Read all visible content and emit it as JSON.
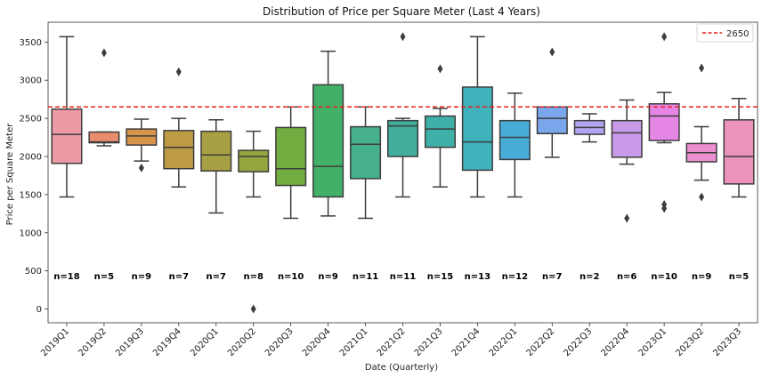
{
  "chart_data": {
    "type": "box",
    "title": "Distribution of Price per Square Meter (Last 4 Years)",
    "xlabel": "Date (Quarterly)",
    "ylabel": "Price per Square Meter",
    "ylim": [
      -180,
      3760
    ],
    "yticks": [
      0,
      500,
      1000,
      1500,
      2000,
      2500,
      3000,
      3500
    ],
    "grid": false,
    "legend": {
      "placement": "top-right",
      "entries": [
        {
          "label": "2650",
          "style": "dashed",
          "color": "#e8231f"
        }
      ]
    },
    "reference_line": {
      "value": 2650,
      "label": "2650",
      "color": "#e8231f"
    },
    "categories": [
      "2019Q1",
      "2019Q2",
      "2019Q3",
      "2019Q4",
      "2020Q1",
      "2020Q2",
      "2020Q3",
      "2020Q4",
      "2021Q1",
      "2021Q2",
      "2021Q3",
      "2021Q4",
      "2022Q1",
      "2022Q2",
      "2022Q3",
      "2022Q4",
      "2023Q1",
      "2023Q2",
      "2023Q3"
    ],
    "counts": [
      "n=18",
      "n=5",
      "n=9",
      "n=7",
      "n=7",
      "n=8",
      "n=10",
      "n=9",
      "n=11",
      "n=11",
      "n=15",
      "n=13",
      "n=12",
      "n=7",
      "n=2",
      "n=6",
      "n=10",
      "n=9",
      "n=5"
    ],
    "count_label_value": 440,
    "boxes": [
      {
        "cat": "2019Q1",
        "whislo": 1470,
        "q1": 1910,
        "med": 2290,
        "q3": 2620,
        "whishi": 3570,
        "fliers": [],
        "color": "#ec9aa5"
      },
      {
        "cat": "2019Q2",
        "whislo": 2140,
        "q1": 2180,
        "med": 2190,
        "q3": 2320,
        "whishi": 2320,
        "fliers": [
          3360
        ],
        "color": "#e88d6c"
      },
      {
        "cat": "2019Q3",
        "whislo": 1940,
        "q1": 2150,
        "med": 2270,
        "q3": 2360,
        "whishi": 2490,
        "fliers": [
          1850
        ],
        "color": "#d8944a"
      },
      {
        "cat": "2019Q4",
        "whislo": 1600,
        "q1": 1840,
        "med": 2120,
        "q3": 2340,
        "whishi": 2500,
        "fliers": [
          3110
        ],
        "color": "#bd9b45"
      },
      {
        "cat": "2020Q1",
        "whislo": 1260,
        "q1": 1810,
        "med": 2020,
        "q3": 2330,
        "whishi": 2480,
        "fliers": [],
        "color": "#a8a044"
      },
      {
        "cat": "2020Q2",
        "whislo": 1470,
        "q1": 1800,
        "med": 2000,
        "q3": 2080,
        "whishi": 2330,
        "fliers": [
          0
        ],
        "color": "#94a63e"
      },
      {
        "cat": "2020Q3",
        "whislo": 1190,
        "q1": 1620,
        "med": 1840,
        "q3": 2380,
        "whishi": 2650,
        "fliers": [],
        "color": "#72ad42"
      },
      {
        "cat": "2020Q4",
        "whislo": 1220,
        "q1": 1470,
        "med": 1870,
        "q3": 2940,
        "whishi": 3380,
        "fliers": [],
        "color": "#43b068"
      },
      {
        "cat": "2021Q1",
        "whislo": 1190,
        "q1": 1710,
        "med": 2160,
        "q3": 2390,
        "whishi": 2650,
        "fliers": [],
        "color": "#45b089"
      },
      {
        "cat": "2021Q2",
        "whislo": 1470,
        "q1": 2000,
        "med": 2400,
        "q3": 2470,
        "whishi": 2500,
        "fliers": [
          3570
        ],
        "color": "#42ad9b"
      },
      {
        "cat": "2021Q3",
        "whislo": 1600,
        "q1": 2120,
        "med": 2360,
        "q3": 2530,
        "whishi": 2630,
        "fliers": [
          3150
        ],
        "color": "#3fb0a8"
      },
      {
        "cat": "2021Q4",
        "whislo": 1470,
        "q1": 1820,
        "med": 2190,
        "q3": 2910,
        "whishi": 3570,
        "fliers": [],
        "color": "#3fb2bc"
      },
      {
        "cat": "2022Q1",
        "whislo": 1470,
        "q1": 1960,
        "med": 2250,
        "q3": 2470,
        "whishi": 2830,
        "fliers": [],
        "color": "#48acd9"
      },
      {
        "cat": "2022Q2",
        "whislo": 1990,
        "q1": 2300,
        "med": 2500,
        "q3": 2650,
        "whishi": 2650,
        "fliers": [
          3370
        ],
        "color": "#7aa6ec"
      },
      {
        "cat": "2022Q3",
        "whislo": 2190,
        "q1": 2290,
        "med": 2380,
        "q3": 2470,
        "whishi": 2560,
        "fliers": [],
        "color": "#b0a5f0"
      },
      {
        "cat": "2022Q4",
        "whislo": 1900,
        "q1": 1990,
        "med": 2310,
        "q3": 2470,
        "whishi": 2740,
        "fliers": [
          1190
        ],
        "color": "#c99ae8"
      },
      {
        "cat": "2023Q1",
        "whislo": 2180,
        "q1": 2210,
        "med": 2530,
        "q3": 2690,
        "whishi": 2840,
        "fliers": [
          3570,
          1370,
          1320
        ],
        "color": "#e586e5"
      },
      {
        "cat": "2023Q2",
        "whislo": 1690,
        "q1": 1930,
        "med": 2050,
        "q3": 2170,
        "whishi": 2390,
        "fliers": [
          3160,
          1470
        ],
        "color": "#ec8fd0"
      },
      {
        "cat": "2023Q3",
        "whislo": 1470,
        "q1": 1640,
        "med": 2000,
        "q3": 2480,
        "whishi": 2760,
        "fliers": [],
        "color": "#ec93bc"
      }
    ]
  }
}
